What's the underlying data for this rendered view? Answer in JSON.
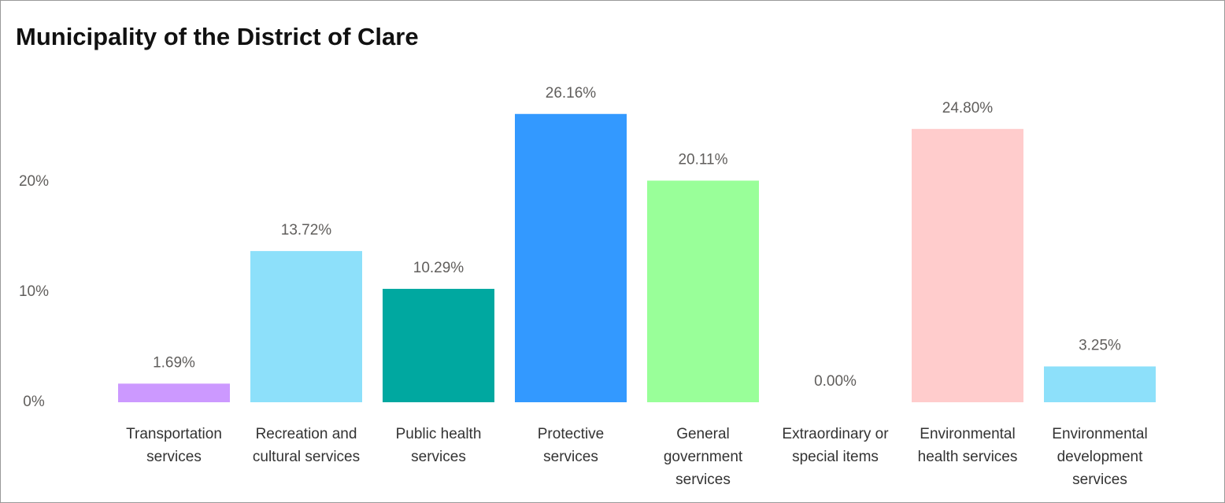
{
  "chart_data": {
    "type": "bar",
    "title": "Municipality of the District of Clare",
    "categories": [
      "Transportation services",
      "Recreation and cultural services",
      "Public health services",
      "Protective services",
      "General government services",
      "Extraordinary or special items",
      "Environmental health services",
      "Environmental development services"
    ],
    "values": [
      1.69,
      13.72,
      10.29,
      26.16,
      20.11,
      0.0,
      24.8,
      3.25
    ],
    "value_labels": [
      "1.69%",
      "13.72%",
      "10.29%",
      "26.16%",
      "20.11%",
      "0.00%",
      "24.80%",
      "3.25%"
    ],
    "colors": [
      "#cc99ff",
      "#8de0fa",
      "#00a8a0",
      "#3399ff",
      "#99ff99",
      "#a66999",
      "#ffcccc",
      "#8de0fa"
    ],
    "ylim": [
      0,
      28
    ],
    "yticks": [
      {
        "value": 0,
        "label": "0%"
      },
      {
        "value": 10,
        "label": "10%"
      },
      {
        "value": 20,
        "label": "20%"
      }
    ]
  }
}
